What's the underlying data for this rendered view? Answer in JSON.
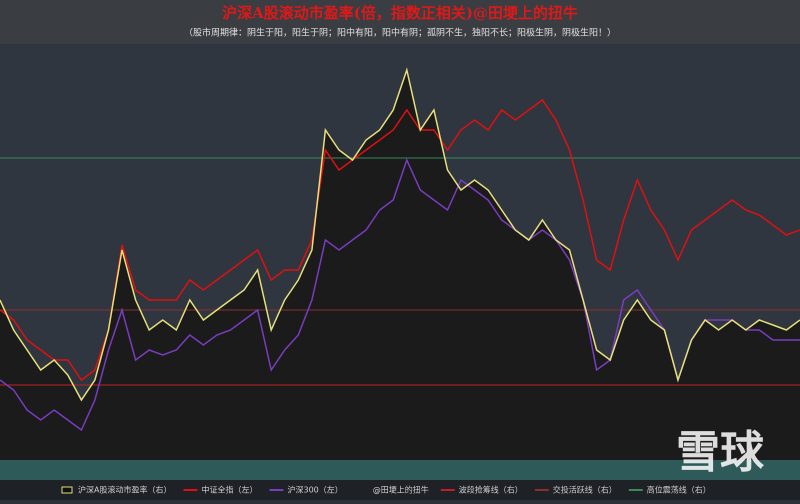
{
  "chart_data": {
    "type": "line",
    "title": "沪深A股滚动市盈率(倍，指数正相关)@田埂上的扭牛",
    "subtitle": "（股市周期律：阴生于阳，阳生于阴；阳中有阳，阳中有阴；孤阴不生，独阳不长；阳极生阴，阴极生阳！）",
    "ylim": [
      0,
      415
    ],
    "series": [
      {
        "name": "沪深A股滚动市盈率（右）",
        "color": "#e8e07a",
        "fill": "#1b1b1b",
        "values": [
          160,
          130,
          110,
          90,
          100,
          85,
          60,
          80,
          130,
          210,
          160,
          130,
          140,
          130,
          160,
          140,
          150,
          160,
          170,
          190,
          130,
          160,
          180,
          210,
          330,
          310,
          300,
          320,
          330,
          350,
          390,
          330,
          350,
          290,
          270,
          280,
          270,
          250,
          230,
          220,
          240,
          220,
          210,
          160,
          110,
          100,
          140,
          160,
          140,
          130,
          80,
          120,
          140,
          130,
          140,
          130,
          140,
          135,
          130,
          140
        ]
      },
      {
        "name": "中证全指（左）",
        "color": "#e01010",
        "values": [
          150,
          140,
          120,
          110,
          100,
          100,
          80,
          90,
          130,
          215,
          170,
          160,
          160,
          160,
          180,
          170,
          180,
          190,
          200,
          210,
          180,
          190,
          190,
          220,
          310,
          290,
          300,
          310,
          320,
          330,
          350,
          330,
          330,
          310,
          330,
          340,
          330,
          350,
          340,
          350,
          360,
          340,
          310,
          260,
          200,
          190,
          240,
          280,
          250,
          230,
          200,
          230,
          240,
          250,
          260,
          250,
          245,
          235,
          225,
          230
        ]
      },
      {
        "name": "沪深300（左）",
        "color": "#7a3cc0",
        "values": [
          80,
          70,
          50,
          40,
          50,
          40,
          30,
          60,
          110,
          150,
          100,
          110,
          105,
          110,
          125,
          115,
          125,
          130,
          140,
          150,
          90,
          110,
          125,
          160,
          220,
          210,
          220,
          230,
          250,
          260,
          300,
          270,
          260,
          250,
          280,
          270,
          260,
          240,
          230,
          220,
          230,
          220,
          200,
          160,
          90,
          100,
          160,
          170,
          150,
          130,
          80,
          120,
          140,
          140,
          140,
          130,
          130,
          120,
          120,
          120
        ]
      }
    ],
    "credit": "@田埂上的扭牛",
    "reference_lines": [
      {
        "name": "波段抢筹线（右）",
        "color": "#c02020",
        "value": 75
      },
      {
        "name": "交投活跃线（右）",
        "color": "#8a3030",
        "value": 150
      },
      {
        "name": "高位震荡线（右）",
        "color": "#3a8a5a",
        "value": 302
      }
    ],
    "watermark": "雪球"
  }
}
